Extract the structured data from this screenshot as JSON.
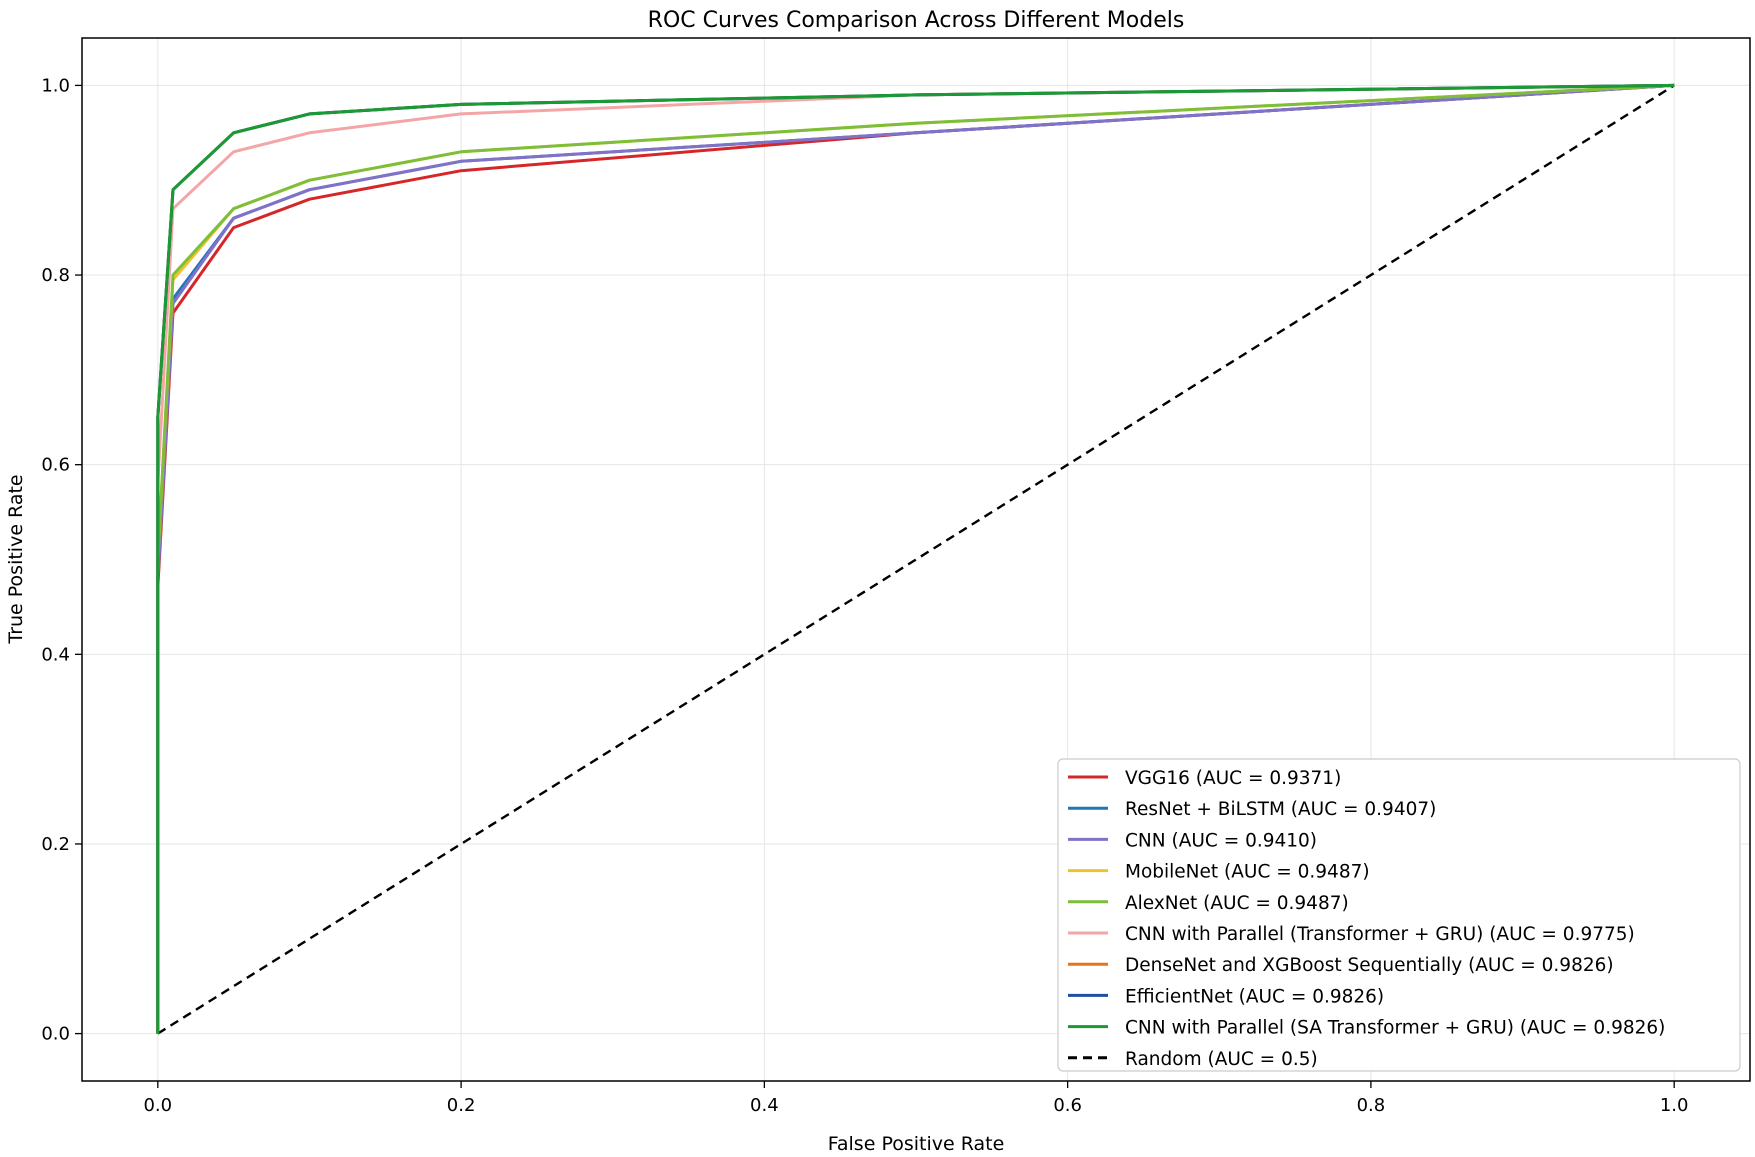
{
  "chart_data": {
    "type": "line",
    "title": "ROC Curves Comparison Across Different Models",
    "xlabel": "False Positive Rate",
    "ylabel": "True Positive Rate",
    "xlim": [
      -0.05,
      1.05
    ],
    "ylim": [
      -0.05,
      1.05
    ],
    "xticks": [
      0.0,
      0.2,
      0.4,
      0.6,
      0.8,
      1.0
    ],
    "yticks": [
      0.0,
      0.2,
      0.4,
      0.6,
      0.8,
      1.0
    ],
    "tick_labels": [
      "0.0",
      "0.2",
      "0.4",
      "0.6",
      "0.8",
      "1.0"
    ],
    "grid": true,
    "legend_position": "lower-right",
    "series": [
      {
        "name": "VGG16 (AUC = 0.9371)",
        "color": "#d62728",
        "dashed": false,
        "x": [
          0,
          0,
          0.01,
          0.05,
          0.1,
          0.2,
          0.5,
          1.0
        ],
        "y": [
          0,
          0.47,
          0.76,
          0.85,
          0.88,
          0.91,
          0.95,
          1.0
        ]
      },
      {
        "name": "ResNet + BiLSTM (AUC = 0.9407)",
        "color": "#1f77b4",
        "dashed": false,
        "x": [
          0,
          0,
          0.01,
          0.05,
          0.1,
          0.2,
          0.5,
          1.0
        ],
        "y": [
          0,
          0.48,
          0.775,
          0.86,
          0.89,
          0.92,
          0.95,
          1.0
        ]
      },
      {
        "name": "CNN (AUC = 0.9410)",
        "color": "#8172c8",
        "dashed": false,
        "x": [
          0,
          0,
          0.01,
          0.05,
          0.1,
          0.2,
          0.5,
          1.0
        ],
        "y": [
          0,
          0.48,
          0.77,
          0.86,
          0.89,
          0.92,
          0.95,
          1.0
        ]
      },
      {
        "name": "MobileNet (AUC = 0.9487)",
        "color": "#f2c12e",
        "dashed": false,
        "x": [
          0,
          0,
          0.01,
          0.05,
          0.1,
          0.2,
          0.5,
          1.0
        ],
        "y": [
          0,
          0.5,
          0.795,
          0.87,
          0.9,
          0.93,
          0.96,
          1.0
        ]
      },
      {
        "name": "AlexNet (AUC = 0.9487)",
        "color": "#7dbf3a",
        "dashed": false,
        "x": [
          0,
          0,
          0.01,
          0.05,
          0.1,
          0.2,
          0.5,
          1.0
        ],
        "y": [
          0,
          0.5,
          0.8,
          0.87,
          0.9,
          0.93,
          0.96,
          1.0
        ]
      },
      {
        "name": "CNN with Parallel (Transformer + GRU) (AUC = 0.9775)",
        "color": "#f4a6a6",
        "dashed": false,
        "x": [
          0,
          0,
          0.01,
          0.05,
          0.1,
          0.2,
          0.5,
          1.0
        ],
        "y": [
          0,
          0.58,
          0.87,
          0.93,
          0.95,
          0.97,
          0.99,
          1.0
        ]
      },
      {
        "name": "DenseNet and XGBoost Sequentially (AUC = 0.9826)",
        "color": "#e8731a",
        "dashed": false,
        "x": [
          0,
          0,
          0.01,
          0.05,
          0.1,
          0.2,
          0.5,
          1.0
        ],
        "y": [
          0,
          0.65,
          0.89,
          0.95,
          0.97,
          0.98,
          0.99,
          1.0
        ]
      },
      {
        "name": "EfficientNet (AUC = 0.9826)",
        "color": "#1f4fa0",
        "dashed": false,
        "x": [
          0,
          0,
          0.01,
          0.05,
          0.1,
          0.2,
          0.5,
          1.0
        ],
        "y": [
          0,
          0.65,
          0.89,
          0.95,
          0.97,
          0.98,
          0.99,
          1.0
        ]
      },
      {
        "name": "CNN with Parallel (SA Transformer + GRU) (AUC = 0.9826)",
        "color": "#1a9a35",
        "dashed": false,
        "x": [
          0,
          0,
          0.01,
          0.05,
          0.1,
          0.2,
          0.5,
          1.0
        ],
        "y": [
          0,
          0.65,
          0.89,
          0.95,
          0.97,
          0.98,
          0.99,
          1.0
        ]
      },
      {
        "name": "Random (AUC = 0.5)",
        "color": "#000000",
        "dashed": true,
        "x": [
          0,
          1.0
        ],
        "y": [
          0,
          1.0
        ]
      }
    ]
  }
}
